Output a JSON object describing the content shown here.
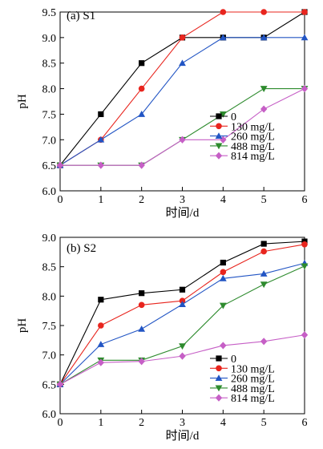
{
  "chart_data": [
    {
      "type": "line",
      "title": "(a)  S1",
      "xlabel": "时间/d",
      "ylabel": "pH",
      "xlim": [
        0,
        6
      ],
      "ylim": [
        6.0,
        9.5
      ],
      "x": [
        0,
        1,
        2,
        3,
        4,
        5,
        6
      ],
      "x_ticks": [
        "0",
        "1",
        "2",
        "3",
        "4",
        "5",
        "6"
      ],
      "y_ticks": [
        "6.0",
        "6.5",
        "7.0",
        "7.5",
        "8.0",
        "8.5",
        "9.0",
        "9.5"
      ],
      "legend_position": "bottom-right",
      "grid": false,
      "series": [
        {
          "name": "0",
          "color": "#000000",
          "marker": "square",
          "values": [
            6.5,
            7.5,
            8.5,
            9.0,
            9.0,
            9.0,
            9.5
          ]
        },
        {
          "name": "130 mg/L",
          "color": "#e8251e",
          "marker": "circle",
          "values": [
            6.5,
            7.0,
            8.0,
            9.0,
            9.5,
            9.5,
            9.5
          ]
        },
        {
          "name": "260 mg/L",
          "color": "#2255c4",
          "marker": "triangle-up",
          "values": [
            6.5,
            7.0,
            7.5,
            8.5,
            9.0,
            9.0,
            9.0
          ]
        },
        {
          "name": "488 mg/L",
          "color": "#2e8b2e",
          "marker": "triangle-down",
          "values": [
            6.5,
            6.5,
            6.5,
            7.0,
            7.5,
            8.0,
            8.0
          ]
        },
        {
          "name": "814 mg/L",
          "color": "#c65fc6",
          "marker": "diamond",
          "values": [
            6.5,
            6.5,
            6.5,
            7.0,
            7.0,
            7.6,
            8.0
          ]
        }
      ]
    },
    {
      "type": "line",
      "title": "(b)  S2",
      "xlabel": "时间/d",
      "ylabel": "pH",
      "xlim": [
        0,
        6
      ],
      "ylim": [
        6.0,
        9.0
      ],
      "x": [
        0,
        1,
        2,
        3,
        4,
        5,
        6
      ],
      "x_ticks": [
        "0",
        "1",
        "2",
        "3",
        "4",
        "5",
        "6"
      ],
      "y_ticks": [
        "6.0",
        "6.5",
        "7.0",
        "7.5",
        "8.0",
        "8.5",
        "9.0"
      ],
      "legend_position": "bottom-right",
      "grid": false,
      "series": [
        {
          "name": "0",
          "color": "#000000",
          "marker": "square",
          "values": [
            6.5,
            7.94,
            8.05,
            8.11,
            8.57,
            8.89,
            8.93
          ]
        },
        {
          "name": "130 mg/L",
          "color": "#e8251e",
          "marker": "circle",
          "values": [
            6.5,
            7.5,
            7.85,
            7.92,
            8.41,
            8.76,
            8.88
          ]
        },
        {
          "name": "260 mg/L",
          "color": "#2255c4",
          "marker": "triangle-up",
          "values": [
            6.5,
            7.18,
            7.44,
            7.86,
            8.3,
            8.38,
            8.56
          ]
        },
        {
          "name": "488 mg/L",
          "color": "#2e8b2e",
          "marker": "triangle-down",
          "values": [
            6.5,
            6.91,
            6.91,
            7.15,
            7.84,
            8.2,
            8.51
          ]
        },
        {
          "name": "814 mg/L",
          "color": "#c65fc6",
          "marker": "diamond",
          "values": [
            6.5,
            6.87,
            6.89,
            6.98,
            7.16,
            7.23,
            7.34
          ]
        }
      ]
    }
  ]
}
